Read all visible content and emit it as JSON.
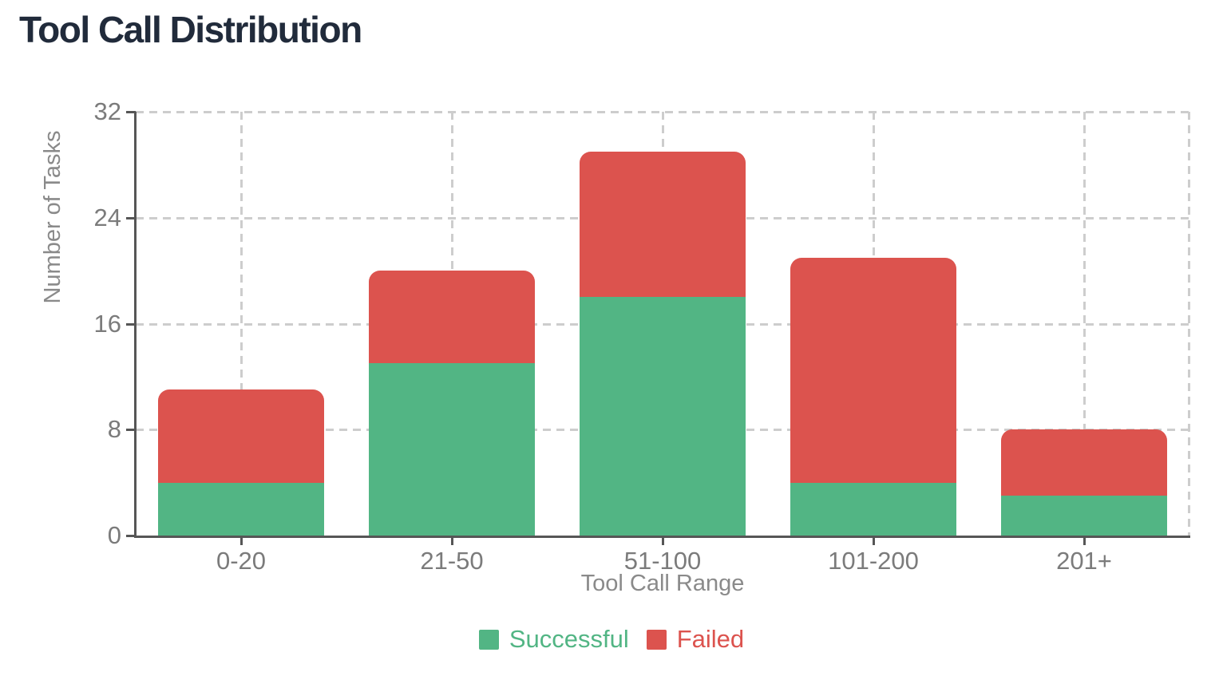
{
  "title": "Tool Call Distribution",
  "colors": {
    "successful": "#52b584",
    "failed": "#dc534e",
    "title_text": "#212b3b",
    "axis_line": "#565656",
    "grid_line": "#cdcdcd",
    "tick_label": "#7b7b7b",
    "axis_title_text": "#8a8a8a",
    "background": "#ffffff"
  },
  "chart_data": {
    "type": "bar",
    "stacked": true,
    "title": "Tool Call Distribution",
    "categories": [
      "0-20",
      "21-50",
      "51-100",
      "101-200",
      "201+"
    ],
    "series": [
      {
        "name": "Successful",
        "color": "#52b584",
        "values": [
          4,
          13,
          18,
          4,
          3
        ]
      },
      {
        "name": "Failed",
        "color": "#dc534e",
        "values": [
          7,
          7,
          11,
          17,
          5
        ]
      }
    ],
    "stacked_totals": [
      11,
      20,
      29,
      21,
      8
    ],
    "xlabel": "Tool Call Range",
    "ylabel": "Number of Tasks",
    "ylim": [
      0,
      32
    ],
    "yticks": [
      0,
      8,
      16,
      24,
      32
    ],
    "grid": "dashed",
    "grid_vertical_at_category_centers": true,
    "legend_position": "bottom",
    "legend": [
      "Successful",
      "Failed"
    ]
  }
}
